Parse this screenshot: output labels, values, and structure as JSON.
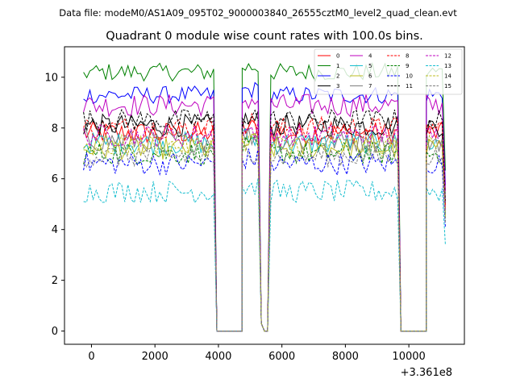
{
  "chart_data": {
    "type": "line",
    "subtitle": "Data file: modeM0/AS1A09_095T02_9000003840_26555cztM0_level2_quad_clean.evt",
    "title": "Quadrant 0 module wise count rates with 100.0s bins.",
    "xlabel": "",
    "ylabel": "",
    "x_offset_label": "+3.361e8",
    "xlim": [
      -850,
      11750
    ],
    "ylim": [
      -0.52,
      11.2
    ],
    "xticks": [
      0,
      2000,
      4000,
      6000,
      8000,
      10000
    ],
    "xtick_labels": [
      "0",
      "2000",
      "4000",
      "6000",
      "8000",
      "10000"
    ],
    "yticks": [
      0,
      2,
      4,
      6,
      8,
      10
    ],
    "ytick_labels": [
      "0",
      "2",
      "4",
      "6",
      "8",
      "10"
    ],
    "grid": false,
    "legend_position": "top-right",
    "legend_columns": 4,
    "segments": [
      {
        "x0": -250,
        "x1": 3850
      },
      {
        "x0": 4750,
        "x1": 5250
      },
      {
        "x0": 5650,
        "x1": 9650
      },
      {
        "x0": 10550,
        "x1": 11150
      }
    ],
    "gaps_at_zero": [
      [
        3950,
        4750
      ],
      [
        5350,
        5550
      ],
      [
        9750,
        10550
      ]
    ],
    "series": [
      {
        "name": "0",
        "color": "#ff0000",
        "dashed": false,
        "level": 7.8
      },
      {
        "name": "1",
        "color": "#008000",
        "dashed": false,
        "level": 10.2
      },
      {
        "name": "2",
        "color": "#0000ff",
        "dashed": false,
        "level": 9.3
      },
      {
        "name": "3",
        "color": "#000000",
        "dashed": false,
        "level": 8.1
      },
      {
        "name": "4",
        "color": "#bf00bf",
        "dashed": false,
        "level": 8.9
      },
      {
        "name": "5",
        "color": "#17becf",
        "dashed": false,
        "level": 7.4
      },
      {
        "name": "6",
        "color": "#bcbd22",
        "dashed": false,
        "level": 7.2
      },
      {
        "name": "7",
        "color": "#7f7f7f",
        "dashed": false,
        "level": 7.5
      },
      {
        "name": "8",
        "color": "#ff0000",
        "dashed": true,
        "level": 8.0
      },
      {
        "name": "9",
        "color": "#008000",
        "dashed": true,
        "level": 7.0
      },
      {
        "name": "10",
        "color": "#0000ff",
        "dashed": true,
        "level": 6.6
      },
      {
        "name": "11",
        "color": "#000000",
        "dashed": true,
        "level": 8.3
      },
      {
        "name": "12",
        "color": "#bf00bf",
        "dashed": true,
        "level": 7.7
      },
      {
        "name": "13",
        "color": "#17becf",
        "dashed": true,
        "level": 5.5
      },
      {
        "name": "14",
        "color": "#bcbd22",
        "dashed": true,
        "level": 7.3
      },
      {
        "name": "15",
        "color": "#7f7f7f",
        "dashed": true,
        "level": 6.9
      }
    ]
  }
}
